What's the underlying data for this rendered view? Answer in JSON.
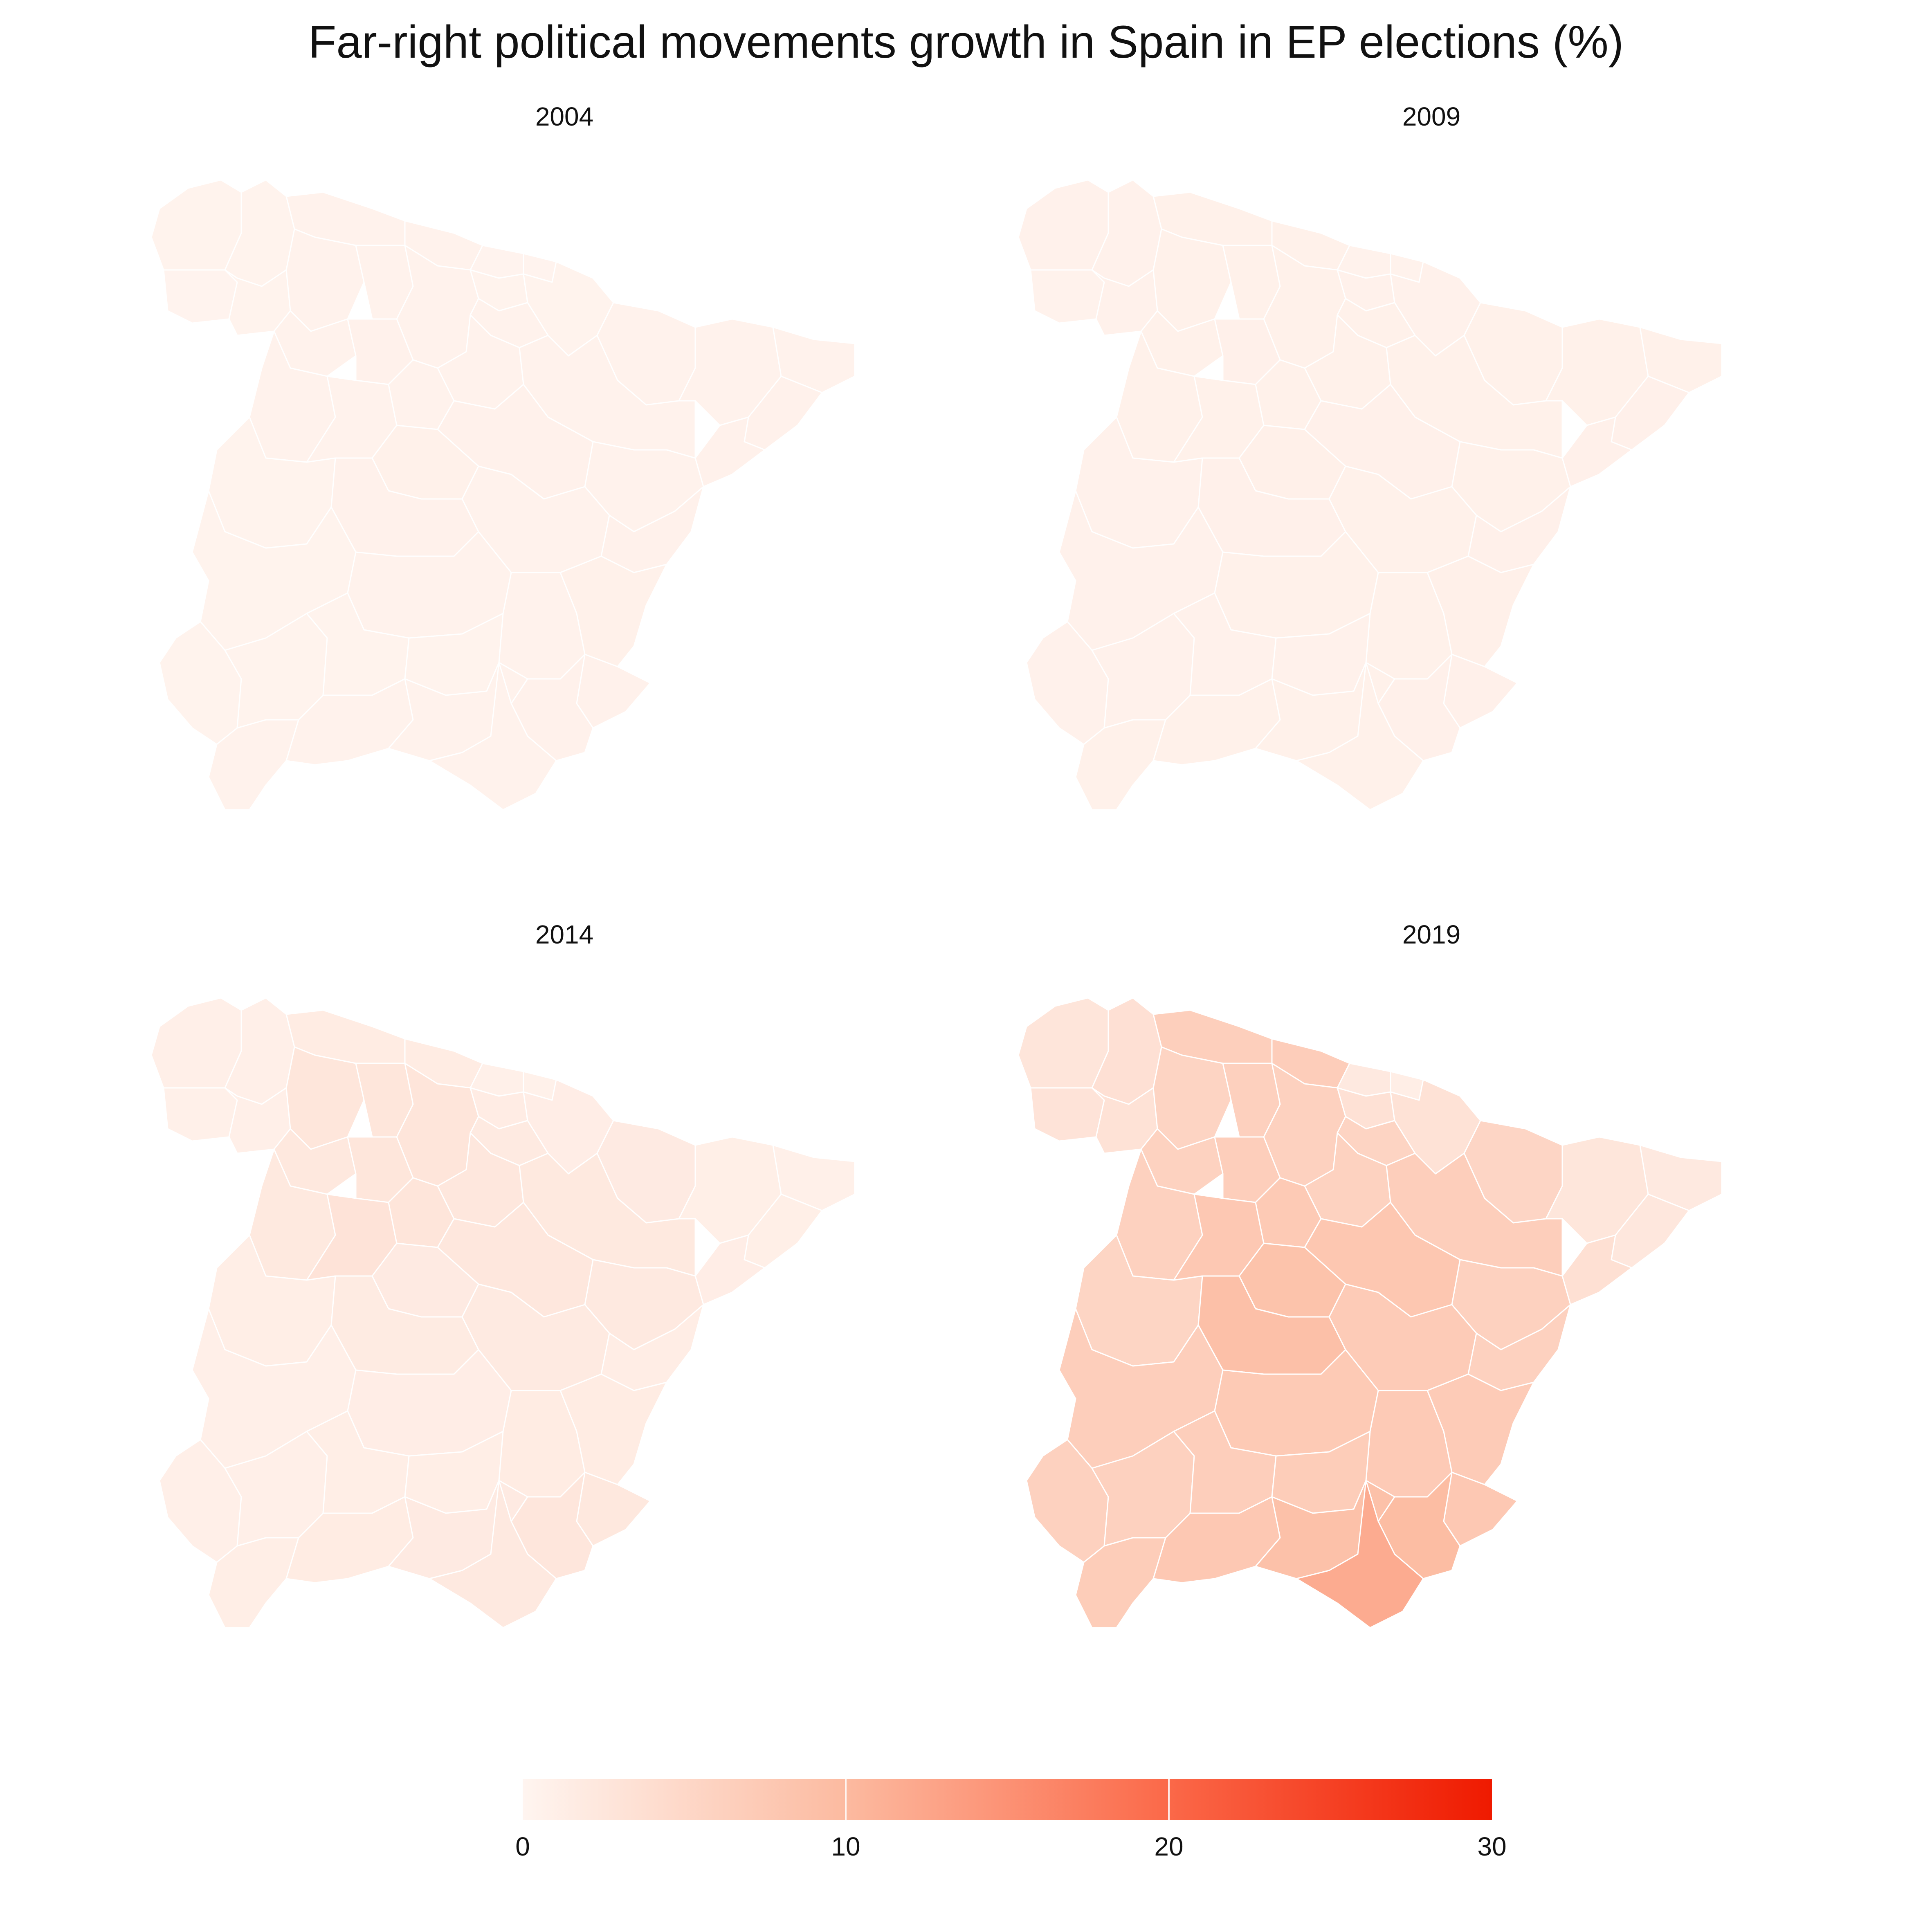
{
  "title": "Far-right political movements growth in Spain in EP elections (%)",
  "panels": [
    {
      "year": "2004"
    },
    {
      "year": "2009"
    },
    {
      "year": "2014"
    },
    {
      "year": "2019"
    }
  ],
  "colors": {
    "scale_low": "#fff5f0",
    "scale_mid1": "#fcbba1",
    "scale_mid2": "#fb6a4a",
    "scale_high": "#ef1a00",
    "border": "#ffffff",
    "background": "#ffffff"
  },
  "legend": {
    "min": 0,
    "max": 30,
    "ticks": [
      "0",
      "10",
      "20",
      "30"
    ]
  },
  "chart_data": {
    "type": "choropleth",
    "region": "Spain (mainland provinces)",
    "value_unit": "%",
    "scale_range": [
      0,
      30
    ],
    "legend_placement": "bottom",
    "series": [
      {
        "name": "2004",
        "values": {
          "A Coruña": 0.4,
          "Lugo": 0.4,
          "Pontevedra": 0.3,
          "Ourense": 0.4,
          "Asturias": 0.5,
          "Cantabria": 0.5,
          "Bizkaia": 0.3,
          "Gipuzkoa": 0.3,
          "Álava": 0.4,
          "Navarra": 0.4,
          "La Rioja": 0.5,
          "Huesca": 0.5,
          "Zaragoza": 0.5,
          "Teruel": 0.5,
          "Lleida": 0.5,
          "Girona": 0.5,
          "Barcelona": 0.6,
          "Tarragona": 0.6,
          "León": 0.5,
          "Palencia": 0.5,
          "Burgos": 0.5,
          "Soria": 0.5,
          "Zamora": 0.5,
          "Valladolid": 0.6,
          "Segovia": 0.5,
          "Salamanca": 0.5,
          "Ávila": 0.5,
          "Madrid": 0.7,
          "Guadalajara": 0.6,
          "Cáceres": 0.4,
          "Toledo": 0.6,
          "Cuenca": 0.5,
          "Badajoz": 0.4,
          "Ciudad Real": 0.5,
          "Albacete": 0.5,
          "Castellón": 0.6,
          "Valencia": 0.7,
          "Alicante": 0.6,
          "Murcia": 0.6,
          "Huelva": 0.4,
          "Sevilla": 0.4,
          "Córdoba": 0.4,
          "Jaén": 0.4,
          "Cádiz": 0.5,
          "Málaga": 0.5,
          "Granada": 0.5,
          "Almería": 0.5
        }
      },
      {
        "name": "2009",
        "values": {
          "A Coruña": 0.6,
          "Lugo": 0.6,
          "Pontevedra": 0.5,
          "Ourense": 0.6,
          "Asturias": 0.7,
          "Cantabria": 0.7,
          "Bizkaia": 0.5,
          "Gipuzkoa": 0.5,
          "Álava": 0.6,
          "Navarra": 0.6,
          "La Rioja": 0.7,
          "Huesca": 0.7,
          "Zaragoza": 0.7,
          "Teruel": 0.7,
          "Lleida": 0.7,
          "Girona": 0.7,
          "Barcelona": 0.8,
          "Tarragona": 0.8,
          "León": 0.7,
          "Palencia": 0.7,
          "Burgos": 0.7,
          "Soria": 0.7,
          "Zamora": 0.7,
          "Valladolid": 0.8,
          "Segovia": 0.7,
          "Salamanca": 0.7,
          "Ávila": 0.7,
          "Madrid": 0.9,
          "Guadalajara": 0.8,
          "Cáceres": 0.6,
          "Toledo": 0.8,
          "Cuenca": 0.7,
          "Badajoz": 0.6,
          "Ciudad Real": 0.7,
          "Albacete": 0.7,
          "Castellón": 0.8,
          "Valencia": 0.9,
          "Alicante": 0.8,
          "Murcia": 0.8,
          "Huelva": 0.6,
          "Sevilla": 0.6,
          "Córdoba": 0.6,
          "Jaén": 0.6,
          "Cádiz": 0.7,
          "Málaga": 0.7,
          "Granada": 0.7,
          "Almería": 0.7
        }
      },
      {
        "name": "2014",
        "values": {
          "A Coruña": 1.0,
          "Lugo": 1.0,
          "Pontevedra": 0.9,
          "Ourense": 1.0,
          "Asturias": 1.6,
          "Cantabria": 1.6,
          "Bizkaia": 0.9,
          "Gipuzkoa": 0.7,
          "Álava": 1.5,
          "Navarra": 1.3,
          "La Rioja": 1.9,
          "Huesca": 1.8,
          "Zaragoza": 2.1,
          "Teruel": 2.0,
          "Lleida": 1.1,
          "Girona": 0.9,
          "Barcelona": 1.1,
          "Tarragona": 1.3,
          "León": 2.6,
          "Palencia": 2.6,
          "Burgos": 2.7,
          "Soria": 2.4,
          "Zamora": 2.2,
          "Valladolid": 2.6,
          "Segovia": 2.7,
          "Salamanca": 2.1,
          "Ávila": 3.0,
          "Madrid": 1.8,
          "Guadalajara": 2.4,
          "Cáceres": 1.2,
          "Toledo": 1.7,
          "Cuenca": 1.9,
          "Badajoz": 1.0,
          "Ciudad Real": 1.3,
          "Albacete": 1.6,
          "Castellón": 1.4,
          "Valencia": 1.6,
          "Alicante": 2.3,
          "Murcia": 2.5,
          "Huelva": 1.0,
          "Sevilla": 1.0,
          "Córdoba": 1.2,
          "Jaén": 1.2,
          "Cádiz": 1.2,
          "Málaga": 1.6,
          "Granada": 1.8,
          "Almería": 2.0
        }
      },
      {
        "name": "2019",
        "values": {
          "A Coruña": 2.8,
          "Lugo": 3.5,
          "Pontevedra": 3.0,
          "Ourense": 3.3,
          "Asturias": 6.5,
          "Cantabria": 6.8,
          "Bizkaia": 2.0,
          "Gipuzkoa": 1.2,
          "Álava": 3.4,
          "Navarra": 3.2,
          "La Rioja": 5.6,
          "Huesca": 5.4,
          "Zaragoza": 6.6,
          "Teruel": 6.2,
          "Lleida": 2.6,
          "Girona": 2.0,
          "Barcelona": 2.4,
          "Tarragona": 3.6,
          "León": 5.6,
          "Palencia": 6.3,
          "Burgos": 6.1,
          "Soria": 6.0,
          "Zamora": 6.0,
          "Valladolid": 6.6,
          "Segovia": 7.4,
          "Salamanca": 6.2,
          "Ávila": 7.6,
          "Madrid": 8.6,
          "Guadalajara": 7.9,
          "Cáceres": 5.5,
          "Toledo": 9.0,
          "Cuenca": 7.2,
          "Badajoz": 6.6,
          "Ciudad Real": 7.4,
          "Albacete": 7.3,
          "Castellón": 6.2,
          "Valencia": 7.2,
          "Alicante": 7.6,
          "Murcia": 9.6,
          "Huelva": 6.1,
          "Sevilla": 6.2,
          "Córdoba": 6.6,
          "Jaén": 6.9,
          "Cádiz": 6.9,
          "Málaga": 7.6,
          "Granada": 8.9,
          "Almería": 11.8
        }
      }
    ]
  }
}
